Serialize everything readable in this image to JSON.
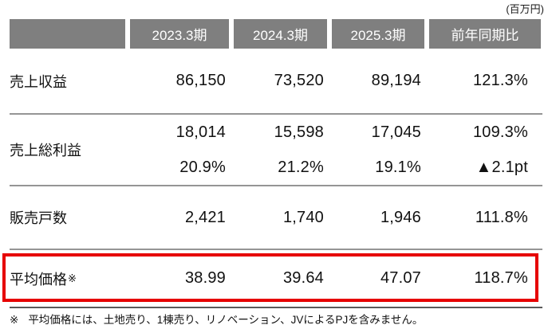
{
  "unit_note": "(百万円)",
  "colors": {
    "header_bg": "#7f7f7f",
    "header_text": "#ffffff",
    "separator": "#959595",
    "bottom_border": "#595959",
    "highlight_border": "#e60000"
  },
  "table": {
    "columns": [
      "",
      "2023.3期",
      "2024.3期",
      "2025.3期",
      "前年同期比"
    ],
    "rows": [
      {
        "label": "売上収益",
        "values": [
          "86,150",
          "73,520",
          "89,194",
          "121.3%"
        ]
      },
      {
        "label": "売上総利益",
        "values_line1": [
          "18,014",
          "15,598",
          "17,045",
          "109.3%"
        ],
        "values_line2": [
          "20.9%",
          "21.2%",
          "19.1%",
          "▲2.1pt"
        ]
      },
      {
        "label": "販売戸数",
        "values": [
          "2,421",
          "1,740",
          "1,946",
          "111.8%"
        ]
      },
      {
        "label": "平均価格",
        "label_suffix": "※",
        "highlighted": true,
        "values": [
          "38.99",
          "39.64",
          "47.07",
          "118.7%"
        ]
      }
    ]
  },
  "footnote": {
    "marker": "※",
    "text_before": "平均価格には、土地売り、1棟売り、リノ",
    "text_misspell": "ベー",
    "text_after": "ション、JVによるPJを含みません。"
  }
}
